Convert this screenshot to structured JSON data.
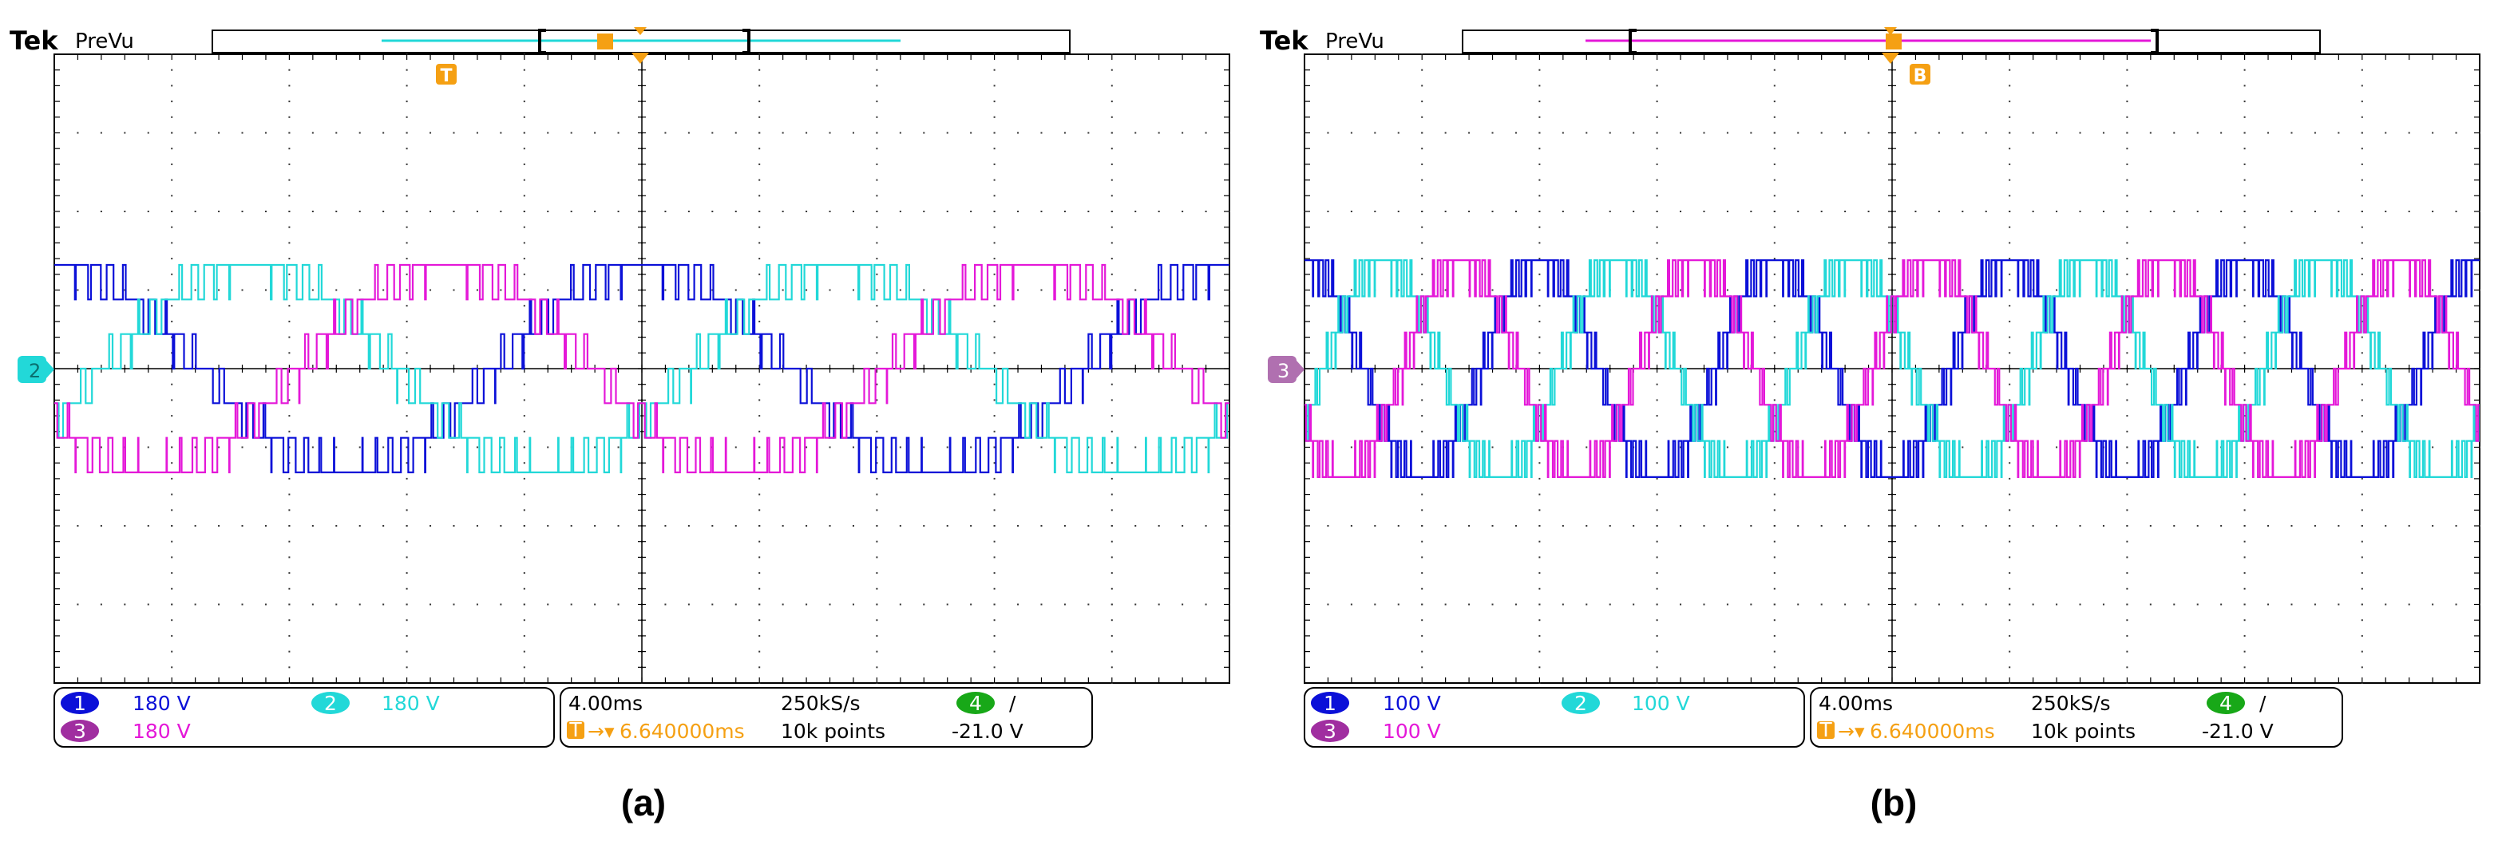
{
  "colors": {
    "ch1": "#0b10d8",
    "ch2": "#22d8d8",
    "ch3": "#e418d8",
    "trigger": "#f5a013",
    "ch4_badge": "#18a818",
    "grid": "#000000"
  },
  "chart_data": [
    {
      "type": "line",
      "panel_label": "(a)",
      "brand": "Tek",
      "mode": "PreVu",
      "trigger_marker": "T",
      "ground_marker": "2",
      "grid": true,
      "divisions": {
        "x": 10,
        "y": 8
      },
      "series": [
        {
          "name": "1",
          "scale": "180 V",
          "color": "#0b10d8",
          "phase_deg": 0
        },
        {
          "name": "2",
          "scale": "180 V",
          "color": "#22d8d8",
          "phase_deg": -120
        },
        {
          "name": "3",
          "scale": "180 V",
          "color": "#e418d8",
          "phase_deg": 120
        }
      ],
      "fundamental_cycles_on_screen": 2,
      "amplitude_div": 1.32,
      "timebase": "4.00ms",
      "sample_rate": "250kS/s",
      "trigger_position": "6.640000ms",
      "record_length": "10k points",
      "trigger_channel": "4",
      "trigger_slope": "/",
      "trigger_level": "-21.0 V"
    },
    {
      "type": "line",
      "panel_label": "(b)",
      "brand": "Tek",
      "mode": "PreVu",
      "trigger_marker": "B",
      "ground_marker": "3",
      "grid": true,
      "divisions": {
        "x": 10,
        "y": 8
      },
      "series": [
        {
          "name": "1",
          "scale": "100 V",
          "color": "#0b10d8",
          "phase_deg": 0
        },
        {
          "name": "2",
          "scale": "100 V",
          "color": "#22d8d8",
          "phase_deg": -120
        },
        {
          "name": "3",
          "scale": "100 V",
          "color": "#e418d8",
          "phase_deg": 120
        }
      ],
      "fundamental_cycles_on_screen": 5,
      "amplitude_div": 1.38,
      "timebase": "4.00ms",
      "sample_rate": "250kS/s",
      "trigger_position": "6.640000ms",
      "record_length": "10k points",
      "trigger_channel": "4",
      "trigger_slope": "/",
      "trigger_level": "-21.0 V"
    }
  ]
}
